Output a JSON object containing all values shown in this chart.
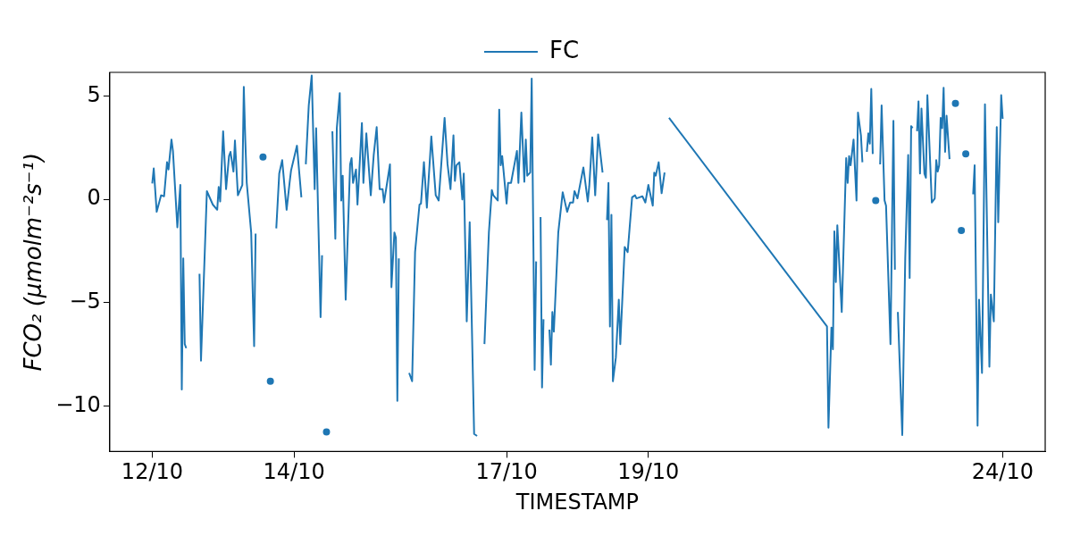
{
  "chart_data": {
    "type": "line",
    "xlabel": "TIMESTAMP",
    "ylabel": "FCO₂ (μmolm⁻²s⁻¹)",
    "legend": "top",
    "xlim": [
      "--10-11T09:36",
      "--10-24T14:24"
    ],
    "xticks": [
      {
        "value": "--10-12",
        "label": "12/10"
      },
      {
        "value": "--10-14",
        "label": "14/10"
      },
      {
        "value": "--10-17",
        "label": "17/10"
      },
      {
        "value": "--10-19",
        "label": "19/10"
      },
      {
        "value": "--10-24",
        "label": "24/10"
      }
    ],
    "ylim": [
      -12.2,
      6.15
    ],
    "yticks": [
      {
        "value": -10,
        "label": "−10"
      },
      {
        "value": -5,
        "label": "−5"
      },
      0,
      5
    ],
    "x": [
      "--10-12T00:00",
      "--10-12T00:30",
      "--10-12T01:30",
      "--10-12T03:00",
      "--10-12T04:00",
      "--10-12T05:00",
      "--10-12T05:30",
      "--10-12T06:30",
      "--10-12T07:00",
      "--10-12T08:30",
      "--10-12T09:30",
      "--10-12T10:00",
      "--10-12T10:30",
      "--10-12T11:00",
      "--10-12T11:30",
      "--10-12T12:00",
      "--10-12T14:00",
      "--10-12T16:00",
      "--10-12T16:30",
      "--10-12T18:30",
      "--10-12T20:30",
      "--10-12T22:00",
      "--10-12T22:30",
      "--10-12T23:00",
      "--10-13T00:00",
      "--10-13T01:00",
      "--10-13T02:00",
      "--10-13T02:30",
      "--10-13T03:30",
      "--10-13T04:00",
      "--10-13T05:00",
      "--10-13T06:30",
      "--10-13T07:00",
      "--10-13T07:30",
      "--10-13T08:00",
      "--10-13T09:30",
      "--10-13T10:30",
      "--10-13T11:00",
      "--10-13T12:00",
      "--10-13T13:30",
      "--10-13T15:00",
      "--10-13T16:00",
      "--10-13T17:00",
      "--10-13T18:00",
      "--10-13T19:00",
      "--10-13T20:00",
      "--10-13T21:30",
      "--10-13T22:30",
      "--10-13T23:00",
      "--10-14T00:00",
      "--10-14T01:00",
      "--10-14T02:30",
      "--10-14T03:30",
      "--10-14T04:00",
      "--10-14T05:00",
      "--10-14T06:00",
      "--10-14T07:00",
      "--10-14T07:30",
      "--10-14T09:00",
      "--10-14T09:30",
      "--10-14T10:30",
      "--10-14T11:00",
      "--10-14T11:30",
      "--10-14T13:00",
      "--10-14T14:00",
      "--10-14T14:30",
      "--10-14T15:30",
      "--10-14T16:00",
      "--10-14T16:30",
      "--10-14T17:30",
      "--10-14T19:00",
      "--10-14T19:30",
      "--10-14T20:00",
      "--10-14T21:00",
      "--10-14T21:30",
      "--10-14T23:00",
      "--10-14T23:30",
      "--10-15T00:30",
      "--10-15T02:00",
      "--10-15T03:00",
      "--10-15T04:00",
      "--10-15T05:00",
      "--10-15T06:00",
      "--10-15T06:30",
      "--10-15T08:30",
      "--10-15T09:00",
      "--10-15T10:00",
      "--10-15T10:30",
      "--10-15T11:00",
      "--10-15T11:30",
      "--10-15T12:00",
      "--10-15T14:30",
      "--10-15T15:00",
      "--10-15T16:00",
      "--10-15T17:00",
      "--10-15T18:30",
      "--10-15T19:00",
      "--10-15T20:00",
      "--10-15T21:00",
      "--10-15T22:30",
      "--10-16T00:00",
      "--10-16T01:00",
      "--10-16T03:00",
      "--10-16T04:00",
      "--10-16T05:00",
      "--10-16T06:00",
      "--10-16T06:30",
      "--10-16T07:00",
      "--10-16T08:00",
      "--10-16T09:00",
      "--10-16T09:30",
      "--10-16T10:30",
      "--10-16T11:30",
      "--10-16T13:00",
      "--10-16T14:00",
      "--10-16T14:30",
      "--10-16T16:30",
      "--10-16T18:00",
      "--10-16T19:00",
      "--10-16T19:30",
      "--10-16T21:00",
      "--10-16T21:30",
      "--10-16T22:00",
      "--10-16T22:30",
      "--10-17T00:00",
      "--10-17T00:30",
      "--10-17T01:30",
      "--10-17T03:30",
      "--10-17T04:00",
      "--10-17T05:00",
      "--10-17T06:00",
      "--10-17T06:30",
      "--10-17T07:00",
      "--10-17T08:00",
      "--10-17T08:30",
      "--10-17T09:30",
      "--10-17T10:00",
      "--10-17T10:30",
      "--10-17T11:00",
      "--10-17T11:30",
      "--10-17T12:00",
      "--10-17T12:30",
      "--10-17T13:30",
      "--10-17T14:30",
      "--10-17T15:00",
      "--10-17T15:30",
      "--10-17T16:00",
      "--10-17T17:30",
      "--10-17T19:00",
      "--10-17T20:30",
      "--10-17T21:30",
      "--10-17T22:30",
      "--10-17T23:00",
      "--10-18T00:00",
      "--10-18T02:00",
      "--10-18T03:30",
      "--10-18T04:00",
      "--10-18T05:00",
      "--10-18T06:00",
      "--10-18T07:00",
      "--10-18T08:30",
      "--10-18T09:30",
      "--10-18T10:00",
      "--10-18T10:30",
      "--10-18T11:00",
      "--10-18T11:30",
      "--10-18T12:00",
      "--10-18T13:00",
      "--10-18T14:00",
      "--10-18T14:30",
      "--10-18T16:00",
      "--10-18T17:00",
      "--10-18T18:30",
      "--10-18T19:30",
      "--10-18T20:00",
      "--10-18T21:00",
      "--10-18T22:00",
      "--10-18T23:00",
      "--10-19T00:00",
      "--10-19T01:30",
      "--10-19T02:00",
      "--10-19T02:30",
      "--10-19T03:30",
      "--10-19T04:30",
      "--10-19T05:30",
      "--10-19T06:00",
      "--10-19T07:00",
      "--10-21T12:30",
      "--10-21T13:00",
      "--10-21T14:00",
      "--10-21T14:30",
      "--10-21T15:00",
      "--10-21T15:30",
      "--10-21T16:00",
      "--10-21T17:30",
      "--10-21T19:00",
      "--10-21T19:30",
      "--10-21T20:00",
      "--10-21T20:30",
      "--10-21T21:30",
      "--10-21T22:30",
      "--10-21T23:00",
      "--10-22T00:00",
      "--10-22T00:30",
      "--10-22T01:00",
      "--10-22T02:00",
      "--10-22T02:30",
      "--10-22T03:00",
      "--10-22T03:30",
      "--10-22T04:00",
      "--10-22T04:30",
      "--10-22T05:00",
      "--10-22T05:30",
      "--10-22T06:30",
      "--10-22T07:00",
      "--10-22T08:00",
      "--10-22T08:30",
      "--10-22T10:00",
      "--10-22T11:00",
      "--10-22T11:30",
      "--10-22T12:00",
      "--10-22T12:30",
      "--10-22T14:00",
      "--10-22T15:00",
      "--10-22T16:00",
      "--10-22T16:30",
      "--10-22T17:00",
      "--10-22T17:30",
      "--10-22T18:30",
      "--10-22T19:00",
      "--10-22T19:30",
      "--10-22T20:00",
      "--10-22T20:30",
      "--10-22T21:30",
      "--10-22T22:00",
      "--10-22T22:30",
      "--10-23T00:00",
      "--10-23T01:00",
      "--10-23T01:30",
      "--10-23T02:00",
      "--10-23T02:30",
      "--10-23T03:00",
      "--10-23T03:30",
      "--10-23T04:00",
      "--10-23T04:30",
      "--10-23T05:00",
      "--10-23T06:00",
      "--10-23T07:00",
      "--10-23T08:00",
      "--10-23T08:30",
      "--10-23T10:00",
      "--10-23T11:00",
      "--10-23T11:30",
      "--10-23T12:00",
      "--10-23T13:00",
      "--10-23T14:00",
      "--10-23T14:30",
      "--10-23T15:30",
      "--10-23T16:00",
      "--10-23T17:00",
      "--10-23T18:00",
      "--10-23T19:30",
      "--10-23T20:00",
      "--10-23T21:00",
      "--10-23T22:00",
      "--10-23T22:30",
      "--10-23T23:30",
      "--10-24T00:00"
    ],
    "series": [
      {
        "name": "FC",
        "color": "#1f77b4",
        "values": [
          0.77,
          1.5,
          -0.6,
          0.2,
          0.15,
          1.8,
          1.45,
          2.9,
          2.35,
          -1.35,
          0.7,
          -9.2,
          -2.85,
          -7.0,
          -7.2,
          null,
          null,
          -3.6,
          -7.8,
          0.4,
          -0.25,
          -0.5,
          0.6,
          -0.1,
          3.3,
          0.5,
          2.1,
          2.3,
          1.35,
          2.85,
          0.2,
          0.7,
          5.45,
          2.9,
          0.8,
          -1.6,
          -7.1,
          -1.65,
          null,
          2.05,
          null,
          -8.8,
          null,
          -1.4,
          1.25,
          1.9,
          -0.5,
          0.8,
          1.4,
          2.0,
          2.6,
          0.1,
          null,
          1.7,
          4.55,
          6.0,
          0.5,
          3.45,
          -5.7,
          -2.7,
          null,
          -11.25,
          null,
          3.3,
          -1.9,
          3.45,
          5.15,
          -0.05,
          1.15,
          -4.85,
          1.7,
          2.0,
          0.8,
          1.45,
          -0.25,
          3.7,
          0.8,
          3.2,
          0.2,
          2.15,
          3.5,
          0.5,
          0.5,
          -0.15,
          1.7,
          -4.25,
          -1.6,
          -1.85,
          -9.75,
          -2.85,
          null,
          null,
          -8.4,
          -8.8,
          -2.55,
          -0.25,
          -0.2,
          1.8,
          -0.4,
          3.05,
          0.2,
          -0.05,
          3.95,
          1.7,
          0.5,
          3.1,
          0.9,
          1.65,
          1.8,
          0.0,
          1.25,
          -5.9,
          -1.1,
          -11.35,
          -11.45,
          null,
          -7.0,
          -1.6,
          0.45,
          0.2,
          -0.05,
          4.35,
          1.65,
          2.1,
          -0.2,
          0.8,
          0.8,
          2.35,
          0.8,
          4.2,
          0.85,
          2.9,
          1.15,
          1.3,
          5.85,
          -8.25,
          -3.0,
          null,
          null,
          -0.85,
          -9.1,
          -5.8,
          null,
          -6.3,
          -8.0,
          -5.45,
          -6.4,
          -1.6,
          0.35,
          -0.6,
          -0.15,
          -0.15,
          0.4,
          0.05,
          1.55,
          -0.1,
          0.65,
          3.0,
          0.2,
          3.15,
          1.3,
          null,
          -1.0,
          0.8,
          -6.15,
          -0.75,
          -8.8,
          -7.65,
          -4.85,
          -7.0,
          -2.3,
          -2.55,
          0.1,
          0.2,
          0.05,
          0.1,
          0.15,
          -0.15,
          0.7,
          -0.3,
          1.3,
          1.15,
          1.8,
          0.3,
          1.3,
          null,
          3.95,
          -6.15,
          -11.05,
          -6.2,
          -7.25,
          -1.55,
          -4.0,
          -1.25,
          -5.45,
          2.0,
          0.8,
          2.1,
          1.65,
          2.9,
          -0.05,
          4.2,
          3.1,
          1.8,
          null,
          2.3,
          3.2,
          2.7,
          5.35,
          2.2,
          null,
          -0.05,
          null,
          1.7,
          4.55,
          -0.05,
          -0.3,
          -7.0,
          3.8,
          -3.4,
          null,
          -5.45,
          -11.4,
          -2.85,
          2.15,
          -3.8,
          3.55,
          3.45,
          null,
          3.3,
          4.75,
          1.25,
          4.4,
          1.25,
          1.05,
          5.05,
          -0.15,
          0.05,
          1.9,
          1.35,
          1.65,
          3.95,
          3.45,
          5.4,
          2.3,
          4.05,
          1.95,
          null,
          4.65,
          null,
          -1.5,
          null,
          2.2,
          null,
          null,
          0.25,
          1.65,
          -10.95,
          -4.85,
          -8.4,
          4.6,
          -8.1,
          -4.6,
          -5.9,
          3.5,
          -1.1,
          5.05,
          3.9
        ]
      }
    ]
  }
}
